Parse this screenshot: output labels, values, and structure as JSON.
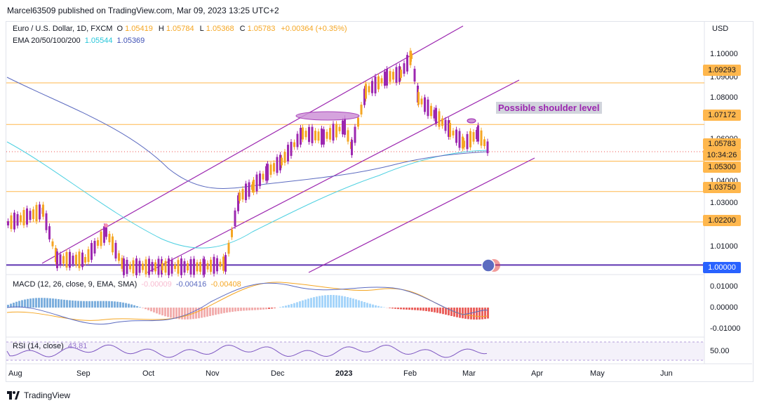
{
  "header": {
    "publisher_line": "Marcel63509 published on TradingView.com, Mar 09, 2023 13:25 UTC+2"
  },
  "legend": {
    "symbol": "Euro / U.S. Dollar, 1D, FXCM",
    "open_label": "O",
    "open": "1.05419",
    "high_label": "H",
    "high": "1.05784",
    "low_label": "L",
    "low": "1.05368",
    "close_label": "C",
    "close": "1.05783",
    "change": "+0.00364 (+0.35%)",
    "ema_label": "EMA 20/50/100/200",
    "ema1": "1.05544",
    "ema2": "1.05369"
  },
  "macd": {
    "label": "MACD (12, 26, close, 9, EMA, SMA)",
    "v1": "-0.00009",
    "v2": "-0.00416",
    "v3": "-0.00408"
  },
  "rsi": {
    "label": "RSI (14, close)",
    "value": "43.81"
  },
  "annotation": "Possible shoulder level",
  "price_axis": {
    "currency": "USD",
    "ticks": [
      "1.10000",
      "1.09000",
      "1.08000",
      "1.06000",
      "1.04000",
      "1.03000",
      "1.01000"
    ],
    "tags": [
      {
        "label": "1.09293",
        "color": "#ffb74d"
      },
      {
        "label": "1.07172",
        "color": "#ffb74d"
      },
      {
        "label": "1.05783",
        "color": "#ffb74d"
      },
      {
        "label": "10:34:26",
        "color": "#ffb74d"
      },
      {
        "label": "1.05300",
        "color": "#ffb74d"
      },
      {
        "label": "1.03750",
        "color": "#ffb74d"
      },
      {
        "label": "1.02200",
        "color": "#ffb74d"
      },
      {
        "label": "1.00000",
        "color": "#2962ff"
      }
    ]
  },
  "macd_axis": [
    "0.01000",
    "0.00000",
    "-0.01000"
  ],
  "rsi_axis": [
    "50.00"
  ],
  "time_axis": [
    "Aug",
    "Sep",
    "Oct",
    "Nov",
    "Dec",
    "2023",
    "Feb",
    "Mar",
    "Apr",
    "May",
    "Jun"
  ],
  "footer": {
    "brand": "TradingView"
  },
  "colors": {
    "up": "#f5a623",
    "down": "#9c27b0",
    "ema_short": "#4dd0e1",
    "ema_long": "#5c6bc0",
    "level": "#ffb74d",
    "channel": "#9c27b0"
  },
  "chart_data": {
    "type": "candlestick",
    "levels": [
      1.09293,
      1.07172,
      1.053,
      1.0375,
      1.022,
      1.0
    ],
    "last_close": 1.05783,
    "ylim": [
      0.998,
      1.113
    ]
  }
}
